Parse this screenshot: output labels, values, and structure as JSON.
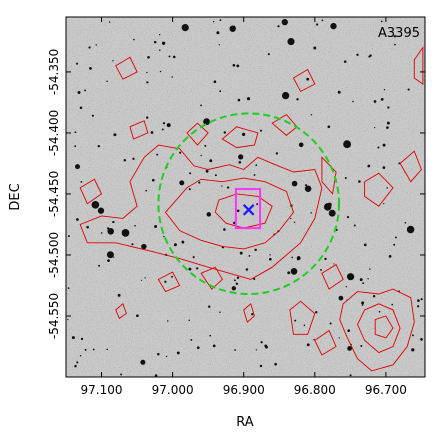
{
  "chart_data": {
    "type": "scatter",
    "title": "",
    "annotation": "A3395",
    "xlabel": "RA",
    "ylabel": "DEC",
    "xlim": [
      97.15,
      96.645
    ],
    "ylim": [
      -54.6,
      -54.305
    ],
    "x_ticks": [
      97.1,
      97.0,
      96.9,
      96.8,
      96.7
    ],
    "x_tick_labels": [
      "97.100",
      "97.000",
      "96.900",
      "96.800",
      "96.700"
    ],
    "y_ticks": [
      -54.35,
      -54.4,
      -54.45,
      -54.5,
      -54.55
    ],
    "y_tick_labels": [
      "-54.350",
      "-54.400",
      "-54.450",
      "-54.500",
      "-54.550"
    ],
    "grid": false,
    "marker": {
      "ra": 96.893,
      "dec": -54.463,
      "symbol": "x",
      "color": "#1a1aff"
    },
    "box": {
      "ra_min": 96.877,
      "ra_max": 96.911,
      "dec_min": -54.478,
      "dec_max": -54.446,
      "color": "#ff33ff"
    },
    "circle": {
      "ra_center": 96.893,
      "dec_center": -54.458,
      "radius_deg": 0.074,
      "color": "#22cc22",
      "linestyle": "dashed"
    },
    "contour_color": "#e00000",
    "contours": [
      [
        [
          97.08,
          -54.345
        ],
        [
          97.06,
          -54.338
        ],
        [
          97.05,
          -54.35
        ],
        [
          97.07,
          -54.356
        ]
      ],
      [
        [
          97.04,
          -54.42
        ],
        [
          97.02,
          -54.41
        ],
        [
          96.99,
          -54.413
        ],
        [
          96.97,
          -54.427
        ],
        [
          96.95,
          -54.43
        ],
        [
          96.92,
          -54.426
        ],
        [
          96.9,
          -54.43
        ],
        [
          96.88,
          -54.42
        ],
        [
          96.86,
          -54.425
        ],
        [
          96.83,
          -54.432
        ],
        [
          96.8,
          -54.43
        ],
        [
          96.79,
          -54.445
        ],
        [
          96.8,
          -54.47
        ],
        [
          96.82,
          -54.49
        ],
        [
          96.84,
          -54.5
        ],
        [
          96.86,
          -54.51
        ],
        [
          96.89,
          -54.52
        ],
        [
          96.92,
          -54.515
        ],
        [
          96.95,
          -54.51
        ],
        [
          96.99,
          -54.503
        ],
        [
          97.03,
          -54.497
        ],
        [
          97.08,
          -54.49
        ],
        [
          97.12,
          -54.49
        ],
        [
          97.13,
          -54.475
        ],
        [
          97.1,
          -54.468
        ],
        [
          97.07,
          -54.47
        ],
        [
          97.05,
          -54.46
        ],
        [
          97.06,
          -54.44
        ]
      ],
      [
        [
          96.98,
          -54.445
        ],
        [
          96.96,
          -54.438
        ],
        [
          96.93,
          -54.44
        ],
        [
          96.9,
          -54.437
        ],
        [
          96.87,
          -54.44
        ],
        [
          96.84,
          -54.448
        ],
        [
          96.83,
          -54.465
        ],
        [
          96.85,
          -54.48
        ],
        [
          96.87,
          -54.49
        ],
        [
          96.9,
          -54.495
        ],
        [
          96.93,
          -54.493
        ],
        [
          96.96,
          -54.488
        ],
        [
          96.99,
          -54.48
        ],
        [
          97.01,
          -54.465
        ]
      ],
      [
        [
          96.935,
          -54.455
        ],
        [
          96.91,
          -54.45
        ],
        [
          96.88,
          -54.452
        ],
        [
          96.86,
          -54.46
        ],
        [
          96.87,
          -54.474
        ],
        [
          96.9,
          -54.478
        ],
        [
          96.925,
          -54.474
        ],
        [
          96.94,
          -54.465
        ]
      ],
      [
        [
          96.93,
          -54.405
        ],
        [
          96.91,
          -54.395
        ],
        [
          96.88,
          -54.4
        ],
        [
          96.885,
          -54.41
        ],
        [
          96.91,
          -54.412
        ]
      ],
      [
        [
          96.98,
          -54.4
        ],
        [
          96.965,
          -54.392
        ],
        [
          96.95,
          -54.4
        ],
        [
          96.965,
          -54.41
        ]
      ],
      [
        [
          96.86,
          -54.392
        ],
        [
          96.84,
          -54.385
        ],
        [
          96.825,
          -54.395
        ],
        [
          96.84,
          -54.402
        ]
      ],
      [
        [
          96.83,
          -54.355
        ],
        [
          96.81,
          -54.348
        ],
        [
          96.8,
          -54.36
        ],
        [
          96.82,
          -54.366
        ]
      ],
      [
        [
          96.79,
          -54.42
        ],
        [
          96.77,
          -54.432
        ],
        [
          96.775,
          -54.45
        ],
        [
          96.79,
          -54.44
        ]
      ],
      [
        [
          96.73,
          -54.44
        ],
        [
          96.71,
          -54.433
        ],
        [
          96.69,
          -54.445
        ],
        [
          96.71,
          -54.46
        ],
        [
          96.73,
          -54.452
        ]
      ],
      [
        [
          96.68,
          -54.425
        ],
        [
          96.66,
          -54.415
        ],
        [
          96.65,
          -54.43
        ],
        [
          96.665,
          -54.44
        ]
      ],
      [
        [
          96.66,
          -54.34
        ],
        [
          96.648,
          -54.33
        ],
        [
          96.648,
          -54.36
        ],
        [
          96.66,
          -54.355
        ]
      ],
      [
        [
          96.96,
          -54.515
        ],
        [
          96.94,
          -54.51
        ],
        [
          96.93,
          -54.52
        ],
        [
          96.945,
          -54.528
        ]
      ],
      [
        [
          97.02,
          -54.52
        ],
        [
          97.0,
          -54.514
        ],
        [
          96.99,
          -54.525
        ],
        [
          97.01,
          -54.53
        ]
      ],
      [
        [
          97.08,
          -54.545
        ],
        [
          97.07,
          -54.54
        ],
        [
          97.065,
          -54.548
        ],
        [
          97.075,
          -54.552
        ]
      ],
      [
        [
          96.9,
          -54.545
        ],
        [
          96.89,
          -54.54
        ],
        [
          96.885,
          -54.55
        ],
        [
          96.895,
          -54.555
        ]
      ],
      [
        [
          96.79,
          -54.515
        ],
        [
          96.77,
          -54.508
        ],
        [
          96.76,
          -54.52
        ],
        [
          96.78,
          -54.528
        ]
      ],
      [
        [
          96.8,
          -54.57
        ],
        [
          96.78,
          -54.562
        ],
        [
          96.77,
          -54.575
        ],
        [
          96.79,
          -54.582
        ]
      ],
      [
        [
          96.76,
          -54.54
        ],
        [
          96.74,
          -54.53
        ],
        [
          96.71,
          -54.532
        ],
        [
          96.69,
          -54.528
        ],
        [
          96.665,
          -54.535
        ],
        [
          96.66,
          -54.555
        ],
        [
          96.67,
          -54.575
        ],
        [
          96.69,
          -54.59
        ],
        [
          96.72,
          -54.595
        ],
        [
          96.74,
          -54.585
        ],
        [
          96.755,
          -54.567
        ],
        [
          96.765,
          -54.553
        ]
      ],
      [
        [
          96.73,
          -54.545
        ],
        [
          96.71,
          -54.54
        ],
        [
          96.69,
          -54.545
        ],
        [
          96.68,
          -54.56
        ],
        [
          96.69,
          -54.575
        ],
        [
          96.71,
          -54.58
        ],
        [
          96.73,
          -54.57
        ],
        [
          96.74,
          -54.557
        ]
      ],
      [
        [
          96.715,
          -54.553
        ],
        [
          96.7,
          -54.55
        ],
        [
          96.69,
          -54.56
        ],
        [
          96.7,
          -54.568
        ],
        [
          96.715,
          -54.565
        ]
      ],
      [
        [
          96.835,
          -54.545
        ],
        [
          96.82,
          -54.538
        ],
        [
          96.8,
          -54.548
        ],
        [
          96.81,
          -54.565
        ],
        [
          96.83,
          -54.565
        ]
      ],
      [
        [
          97.13,
          -54.445
        ],
        [
          97.11,
          -54.438
        ],
        [
          97.1,
          -54.45
        ],
        [
          97.12,
          -54.458
        ]
      ],
      [
        [
          97.06,
          -54.395
        ],
        [
          97.04,
          -54.39
        ],
        [
          97.035,
          -54.4
        ],
        [
          97.055,
          -54.405
        ]
      ]
    ]
  }
}
